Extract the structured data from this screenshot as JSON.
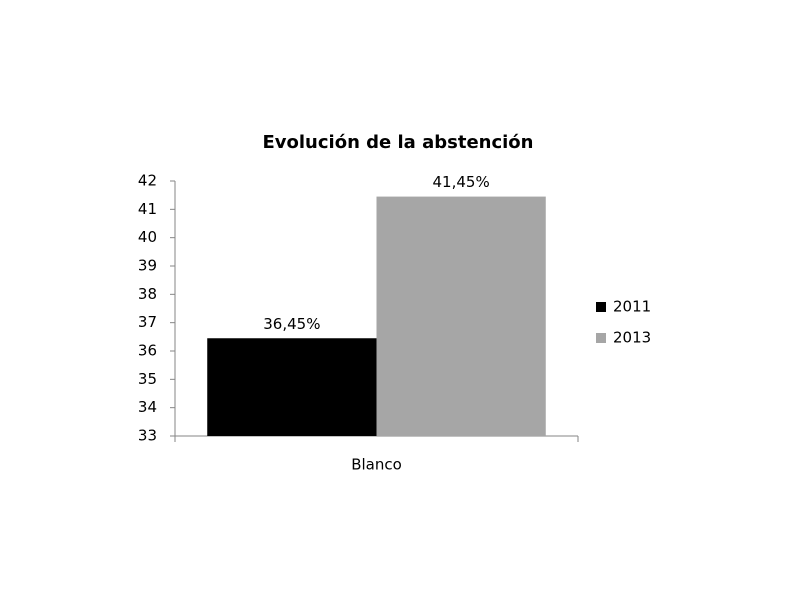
{
  "chart_data": {
    "type": "bar",
    "title": "Evolución de la abstención",
    "categories": [
      "Blanco"
    ],
    "series": [
      {
        "name": "2011",
        "color": "#000000",
        "values": [
          36.45
        ],
        "value_labels": [
          "36,45%"
        ]
      },
      {
        "name": "2013",
        "color": "#a6a6a6",
        "values": [
          41.45
        ],
        "value_labels": [
          "41,45%"
        ]
      }
    ],
    "ylim": [
      33,
      42
    ],
    "yticks": [
      33,
      34,
      35,
      36,
      37,
      38,
      39,
      40,
      41,
      42
    ],
    "grid": false,
    "legend": "right"
  }
}
